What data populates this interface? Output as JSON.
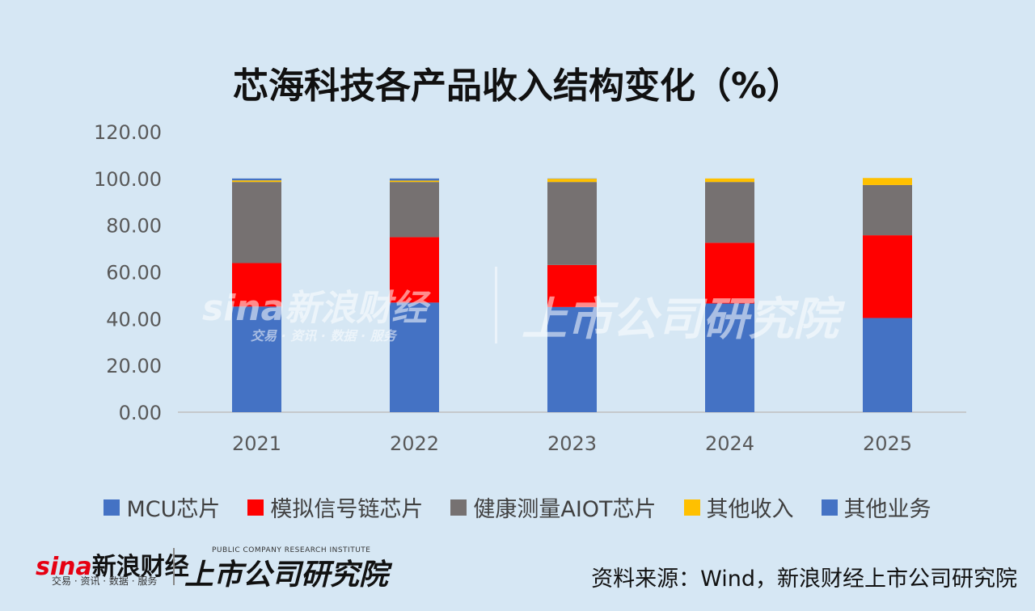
{
  "chart_data": {
    "type": "bar",
    "stacked": true,
    "title": "芯海科技各产品收入结构变化（%）",
    "categories": [
      "2021",
      "2022",
      "2023",
      "2024",
      "2025"
    ],
    "ylim": [
      0,
      120
    ],
    "yticks": [
      "0.00",
      "20.00",
      "40.00",
      "60.00",
      "80.00",
      "100.00",
      "120.00"
    ],
    "grid": false,
    "legend_position": "bottom",
    "series": [
      {
        "name": "MCU芯片",
        "color": "#4472c4",
        "values": [
          45.2,
          46.9,
          45.0,
          46.5,
          40.3
        ]
      },
      {
        "name": "模拟信号链芯片",
        "color": "#ff0000",
        "values": [
          18.6,
          28.0,
          18.0,
          26.0,
          35.4
        ]
      },
      {
        "name": "健康测量AIOT芯片",
        "color": "#767171",
        "values": [
          34.7,
          23.6,
          35.5,
          26.0,
          21.5
        ]
      },
      {
        "name": "其他收入",
        "color": "#ffc000",
        "values": [
          0.7,
          0.6,
          1.4,
          1.5,
          3.0
        ]
      },
      {
        "name": "其他业务",
        "color": "#4472c4",
        "values": [
          0.8,
          0.9,
          0.1,
          0.0,
          0.0
        ]
      }
    ]
  },
  "watermark": {
    "sina": "sina新浪财经",
    "sina_sub": "交易 · 资讯 · 数据 · 服务",
    "research": "上市公司研究院"
  },
  "footer": {
    "sina_logo_prefix": "sina",
    "sina_logo_text": "新浪财经",
    "sina_logo_sub": "交易 · 资讯 · 数据 · 服务",
    "research_logo": "上市公司研究院",
    "research_logo_sub": "PUBLIC COMPANY RESEARCH INSTITUTE",
    "source": "资料来源：Wind，新浪财经上市公司研究院"
  }
}
